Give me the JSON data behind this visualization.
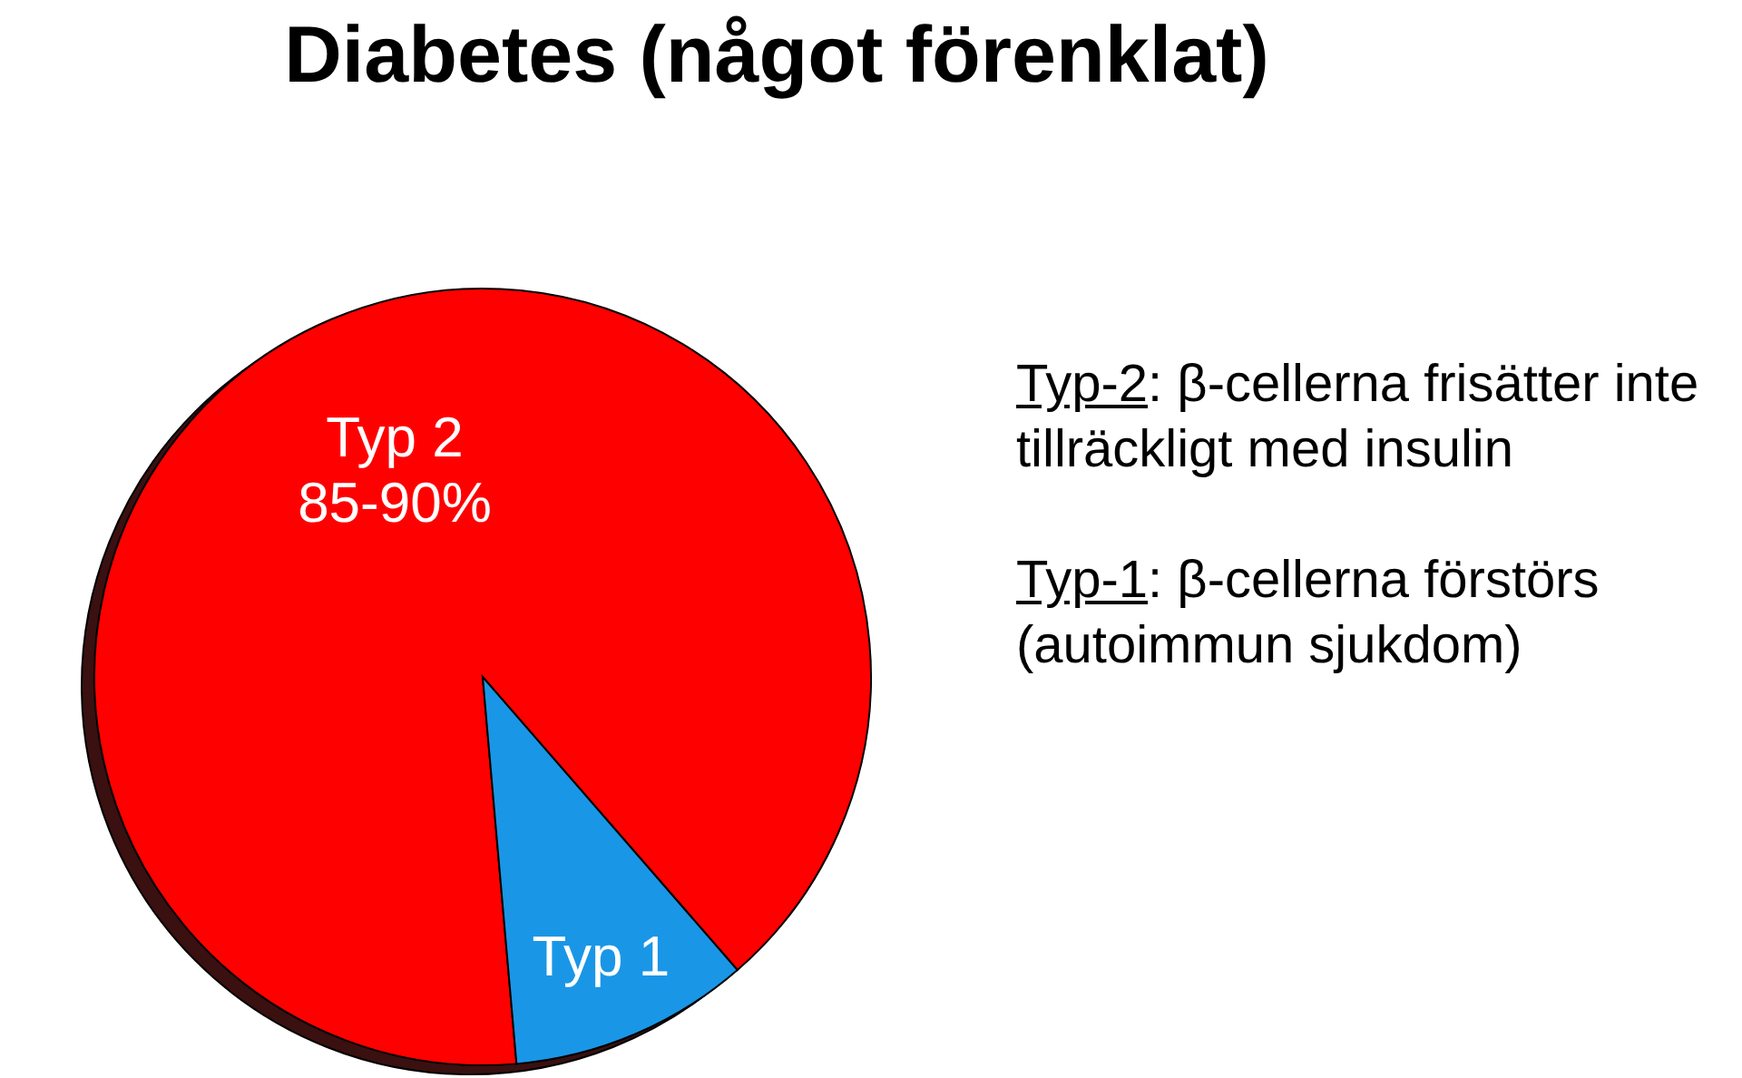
{
  "chart_data": {
    "type": "pie",
    "title": "Diabetes (något förenklat)",
    "categories": [
      "Typ 2",
      "Typ 1"
    ],
    "values": [
      90,
      10
    ],
    "colors": [
      "#ff0000",
      "#1a96e6"
    ],
    "annotations": [
      {
        "text": "85-90%",
        "x": "Typ 2"
      },
      "Typ-2: β-cellerna frisätter inte tillräckligt med insulin",
      "Typ-1: β-cellerna förstörs (autoimmun sjukdom)"
    ]
  }
}
